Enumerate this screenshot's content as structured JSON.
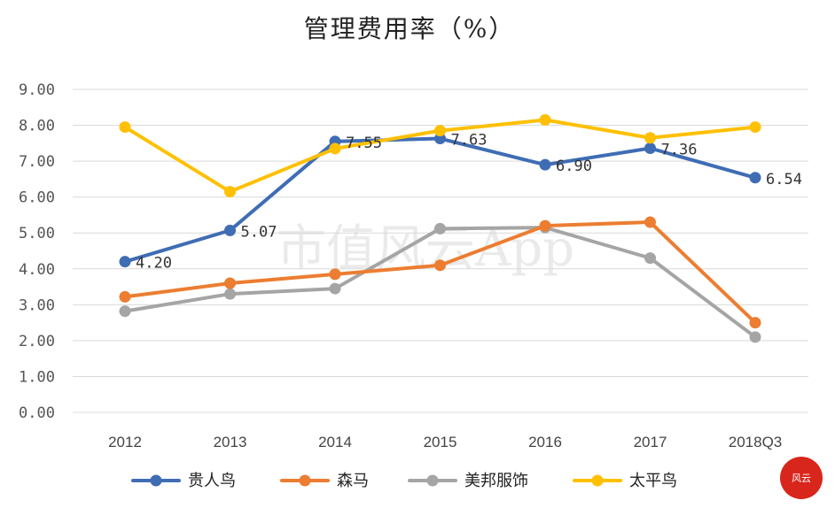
{
  "chart_data": {
    "type": "line",
    "title": "管理费用率（%）",
    "categories": [
      "2012",
      "2013",
      "2014",
      "2015",
      "2016",
      "2017",
      "2018Q3"
    ],
    "ylim": [
      0,
      9
    ],
    "yticks": [
      "0.00",
      "1.00",
      "2.00",
      "3.00",
      "4.00",
      "5.00",
      "6.00",
      "7.00",
      "8.00",
      "9.00"
    ],
    "grid": true,
    "legend_position": "bottom",
    "series": [
      {
        "name": "贵人鸟",
        "color": "#3f6db4",
        "values": [
          4.2,
          5.07,
          7.55,
          7.63,
          6.9,
          7.36,
          6.54
        ],
        "labels": [
          "4.20",
          "5.07",
          "7.55",
          "7.63",
          "6.90",
          "7.36",
          "6.54"
        ]
      },
      {
        "name": "森马",
        "color": "#ec7d31",
        "values": [
          3.22,
          3.6,
          3.85,
          4.1,
          5.2,
          5.3,
          2.5
        ]
      },
      {
        "name": "美邦服饰",
        "color": "#a5a5a5",
        "values": [
          2.82,
          3.3,
          3.45,
          5.12,
          5.15,
          4.3,
          2.1
        ]
      },
      {
        "name": "太平鸟",
        "color": "#ffc000",
        "values": [
          7.95,
          6.15,
          7.35,
          7.85,
          8.15,
          7.65,
          7.95
        ]
      }
    ]
  },
  "watermark": "市值风云App",
  "stamp": {
    "text": "风云",
    "color": "#d8261c"
  }
}
